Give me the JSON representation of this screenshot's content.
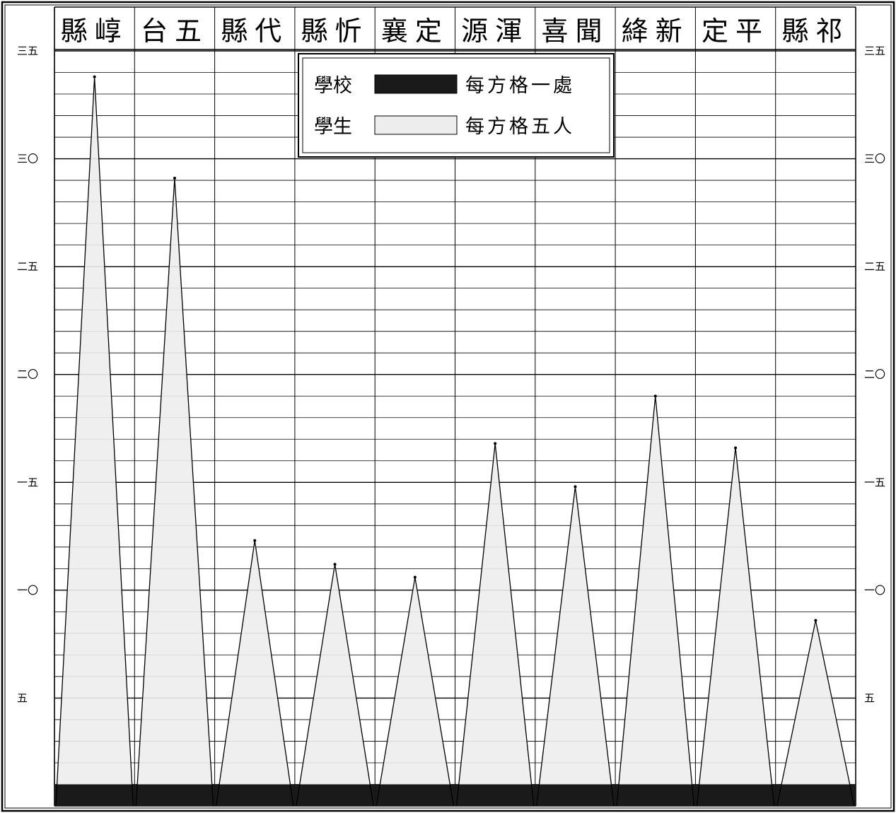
{
  "chart_data": {
    "type": "area",
    "categories": [
      "縣崞",
      "台五",
      "縣代",
      "縣忻",
      "襄定",
      "源渾",
      "喜聞",
      "絳新",
      "定平",
      "縣祁"
    ],
    "series": [
      {
        "name": "學校",
        "values": [
          1,
          1,
          1,
          1,
          1,
          1,
          1,
          1,
          1,
          1
        ]
      },
      {
        "name": "學生",
        "values": [
          33.8,
          29.1,
          12.3,
          11.2,
          10.6,
          16.8,
          14.8,
          19.0,
          16.6,
          8.6
        ]
      }
    ],
    "legend": [
      {
        "name": "學校",
        "note": "每方格一處",
        "color": "#1a1a1a"
      },
      {
        "name": "學生",
        "note": "每方格五人",
        "color": "#ededed"
      }
    ],
    "yticks": [
      {
        "value": 35,
        "label": "三五"
      },
      {
        "value": 30,
        "label": "三〇"
      },
      {
        "value": 25,
        "label": "二五"
      },
      {
        "value": 20,
        "label": "二〇"
      },
      {
        "value": 15,
        "label": "一五"
      },
      {
        "value": 10,
        "label": "一〇"
      },
      {
        "value": 5,
        "label": "五"
      }
    ],
    "ylim": [
      0,
      35
    ],
    "grid": true,
    "legend_position": "top-center"
  }
}
